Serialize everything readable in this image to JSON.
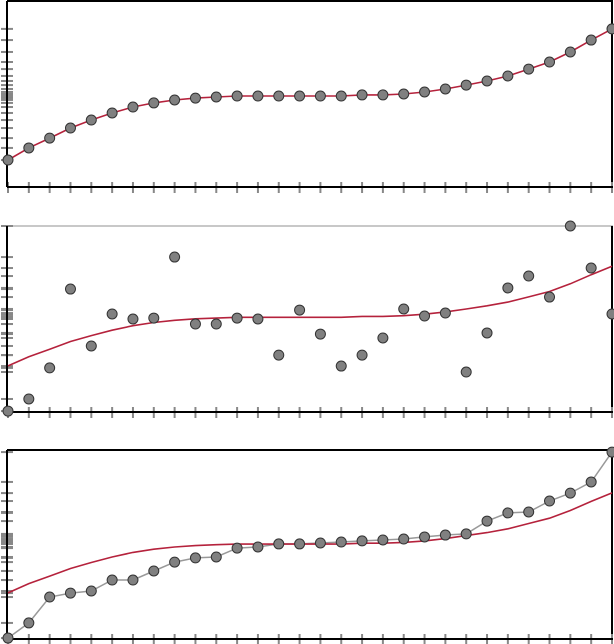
{
  "chart_data": [
    {
      "type": "scatter",
      "x": [
        1,
        2,
        3,
        4,
        5,
        6,
        7,
        8,
        9,
        10,
        11,
        12,
        13,
        14,
        15,
        16,
        17,
        18,
        19,
        20,
        21,
        22,
        23,
        24,
        25,
        26,
        27,
        28,
        29,
        30
      ],
      "ylim": [
        0,
        100
      ],
      "xlim": [
        1,
        30
      ],
      "grid": false,
      "rug": true,
      "series": [
        {
          "kind": "points",
          "connected": false,
          "values": [
            14.5,
            21,
            26.3,
            31.7,
            36,
            39.8,
            43,
            45.2,
            46.8,
            47.8,
            48.4,
            48.9,
            48.9,
            48.9,
            48.9,
            48.9,
            48.9,
            49.5,
            49.5,
            50,
            51.1,
            52.7,
            54.8,
            57,
            59.7,
            63.4,
            67.2,
            72.6,
            79,
            85
          ]
        },
        {
          "kind": "curve",
          "values": [
            14.5,
            21,
            26.3,
            31.7,
            36,
            39.8,
            43,
            45.2,
            46.8,
            47.8,
            48.4,
            48.9,
            48.9,
            48.9,
            48.9,
            48.9,
            48.9,
            49.5,
            49.5,
            50,
            51.1,
            52.7,
            54.8,
            57,
            59.7,
            63.4,
            67.2,
            72.6,
            79,
            85
          ]
        }
      ]
    },
    {
      "type": "scatter",
      "x": [
        1,
        2,
        3,
        4,
        5,
        6,
        7,
        8,
        9,
        10,
        11,
        12,
        13,
        14,
        15,
        16,
        17,
        18,
        19,
        20,
        21,
        22,
        23,
        24,
        25,
        26,
        27,
        28,
        29,
        30
      ],
      "ylim": [
        0,
        100
      ],
      "xlim": [
        1,
        30
      ],
      "grid": false,
      "rug": true,
      "series": [
        {
          "kind": "points",
          "connected": false,
          "values": [
            0.5,
            7,
            23.7,
            66.1,
            35.5,
            52.7,
            50,
            50.5,
            83.3,
            47.3,
            47.3,
            50.5,
            50,
            30.6,
            54.8,
            41.9,
            24.7,
            30.6,
            39.8,
            55.4,
            51.6,
            53.2,
            21.5,
            42.5,
            66.7,
            73.1,
            61.8,
            100,
            77.4,
            52.7
          ]
        },
        {
          "kind": "curve",
          "values": [
            24.8,
            29.7,
            33.7,
            37.9,
            41.1,
            44,
            46.4,
            48.1,
            49.3,
            50.1,
            50.5,
            50.9,
            50.9,
            50.9,
            50.9,
            50.9,
            50.9,
            51.4,
            51.4,
            51.8,
            52.6,
            53.8,
            55.4,
            57.1,
            59.1,
            61.9,
            64.8,
            68.9,
            73.8,
            78.4
          ]
        }
      ]
    },
    {
      "type": "line",
      "x": [
        1,
        2,
        3,
        4,
        5,
        6,
        7,
        8,
        9,
        10,
        11,
        12,
        13,
        14,
        15,
        16,
        17,
        18,
        19,
        20,
        21,
        22,
        23,
        24,
        25,
        26,
        27,
        28,
        29,
        30
      ],
      "ylim": [
        0,
        100
      ],
      "xlim": [
        1,
        30
      ],
      "grid": false,
      "rug": true,
      "series": [
        {
          "kind": "points",
          "connected": true,
          "values": [
            0.5,
            8.5,
            22.2,
            24.3,
            25.4,
            31.2,
            31.2,
            36,
            40.7,
            42.9,
            43.4,
            48.1,
            48.7,
            50.3,
            50.3,
            50.8,
            51.3,
            51.9,
            52.4,
            52.9,
            54,
            55,
            55.6,
            62.4,
            66.7,
            67.2,
            73,
            77.2,
            83.1,
            98.9
          ]
        },
        {
          "kind": "curve",
          "values": [
            24.4,
            29.3,
            33.3,
            37.3,
            40.5,
            43.4,
            45.8,
            47.5,
            48.7,
            49.4,
            49.9,
            50.2,
            50.2,
            50.2,
            50.2,
            50.2,
            50.2,
            50.7,
            50.7,
            51.1,
            51.9,
            53.1,
            54.7,
            56.3,
            58.3,
            61.1,
            63.9,
            68,
            72.8,
            77.3
          ]
        }
      ]
    }
  ],
  "colors": {
    "point_fill": "#808080",
    "point_stroke": "#333333",
    "curve": "#b5223c",
    "connector": "#999999",
    "rug": "#888888",
    "axis": "#000000"
  }
}
